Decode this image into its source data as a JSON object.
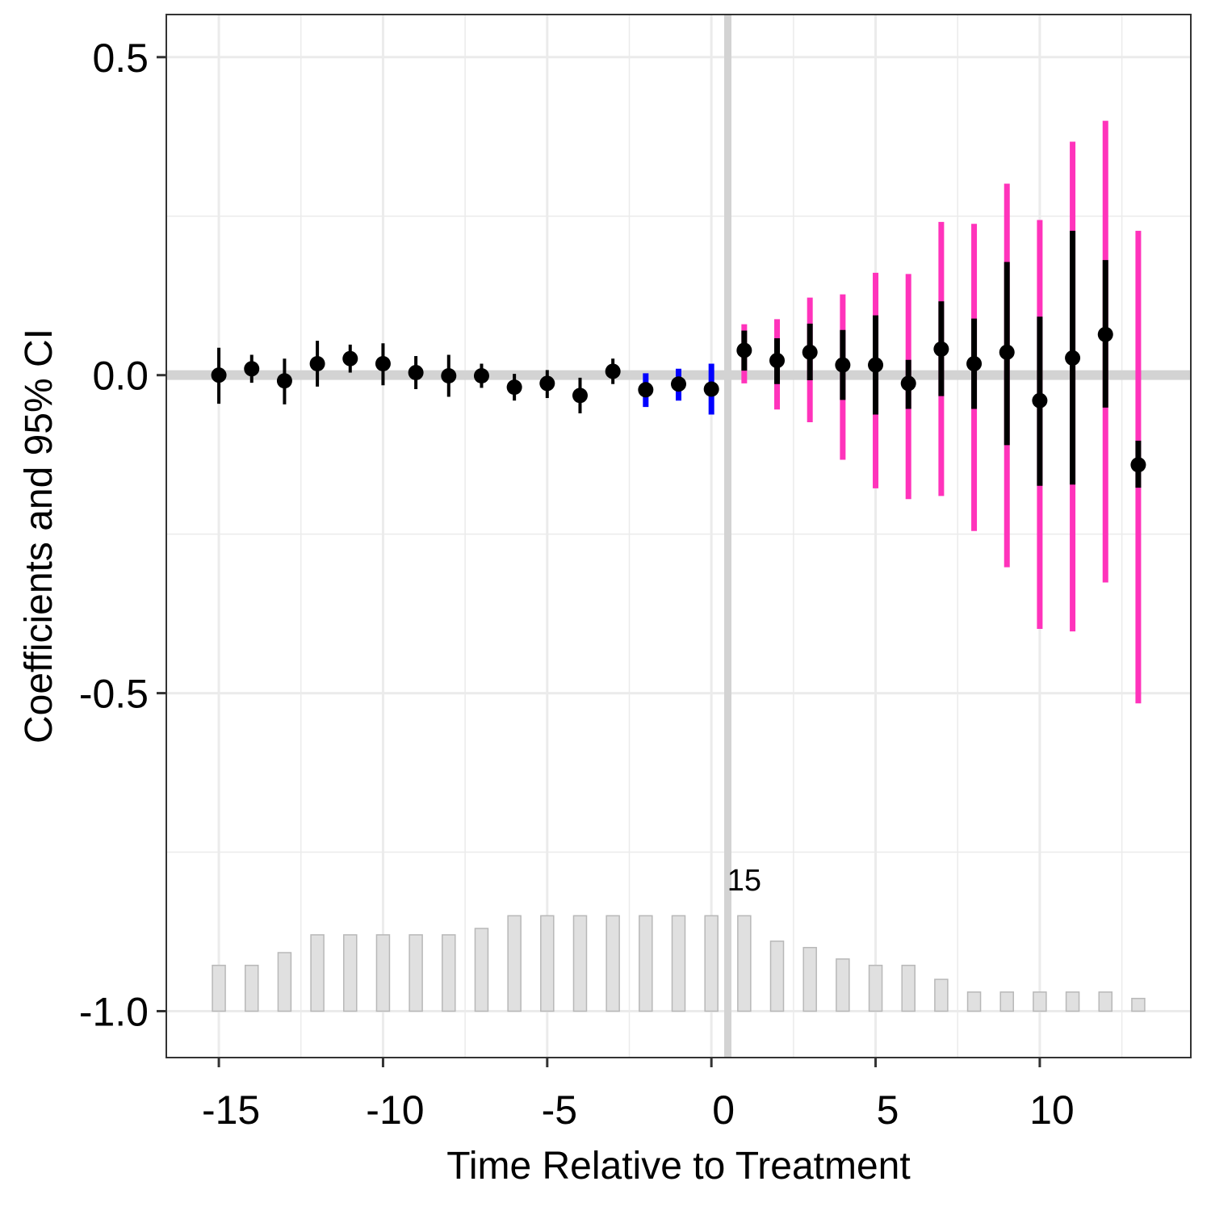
{
  "chart_data": {
    "type": "scatter",
    "title": "",
    "xlabel": "Time Relative to Treatment",
    "ylabel": "Coefficients and 95% CI",
    "xlim": [
      -16.6,
      14.6
    ],
    "ylim": [
      -1.073,
      0.567
    ],
    "x_ticks": [
      -15,
      -10,
      -5,
      0,
      5,
      10
    ],
    "x_tick_labels": [
      "-15",
      "-10",
      "-5",
      "0",
      "5",
      "10"
    ],
    "y_ticks": [
      0.5,
      0.0,
      -0.5,
      -1.0
    ],
    "y_tick_labels": [
      "0.5",
      "0.0",
      "-0.5",
      "-1.0"
    ],
    "grid": true,
    "reference_lines": {
      "y": 0.0,
      "x": 0.5
    },
    "colors": {
      "point": "#000000",
      "ci_pre": "#000000",
      "ci_placebo": "#0000ff",
      "ci_post_outer": "#ff33bb",
      "ci_post_inner": "#000000",
      "reference_line": "#d3d3d3",
      "count_bar_fill": "#e0e0e0",
      "count_bar_stroke": "#b8b8b8",
      "grid": "#ebebeb",
      "panel_border": "#333333"
    },
    "points": [
      {
        "x": -15,
        "y": 0.0,
        "ci": [
          -0.045,
          0.043
        ],
        "group": "pre"
      },
      {
        "x": -14,
        "y": 0.01,
        "ci": [
          -0.012,
          0.032
        ],
        "group": "pre"
      },
      {
        "x": -13,
        "y": -0.009,
        "ci": [
          -0.046,
          0.026
        ],
        "group": "pre"
      },
      {
        "x": -12,
        "y": 0.018,
        "ci": [
          -0.018,
          0.054
        ],
        "group": "pre"
      },
      {
        "x": -11,
        "y": 0.026,
        "ci": [
          0.004,
          0.048
        ],
        "group": "pre"
      },
      {
        "x": -10,
        "y": 0.018,
        "ci": [
          -0.016,
          0.05
        ],
        "group": "pre"
      },
      {
        "x": -9,
        "y": 0.004,
        "ci": [
          -0.022,
          0.03
        ],
        "group": "pre"
      },
      {
        "x": -8,
        "y": -0.001,
        "ci": [
          -0.034,
          0.032
        ],
        "group": "pre"
      },
      {
        "x": -7,
        "y": -0.001,
        "ci": [
          -0.02,
          0.018
        ],
        "group": "pre"
      },
      {
        "x": -6,
        "y": -0.019,
        "ci": [
          -0.04,
          0.002
        ],
        "group": "pre"
      },
      {
        "x": -5,
        "y": -0.013,
        "ci": [
          -0.036,
          0.008
        ],
        "group": "pre"
      },
      {
        "x": -4,
        "y": -0.032,
        "ci": [
          -0.06,
          -0.004
        ],
        "group": "pre"
      },
      {
        "x": -3,
        "y": 0.006,
        "ci": [
          -0.014,
          0.026
        ],
        "group": "pre"
      },
      {
        "x": -2,
        "y": -0.023,
        "ci": [
          -0.05,
          0.003
        ],
        "group": "placebo"
      },
      {
        "x": -1,
        "y": -0.014,
        "ci": [
          -0.04,
          0.01
        ],
        "group": "placebo"
      },
      {
        "x": 0,
        "y": -0.022,
        "ci": [
          -0.062,
          0.018
        ],
        "group": "placebo"
      },
      {
        "x": 1,
        "y": 0.039,
        "ci": [
          0.007,
          0.07
        ],
        "ci_outer": [
          -0.013,
          0.08
        ],
        "group": "post"
      },
      {
        "x": 2,
        "y": 0.023,
        "ci": [
          -0.014,
          0.058
        ],
        "ci_outer": [
          -0.054,
          0.088
        ],
        "group": "post"
      },
      {
        "x": 3,
        "y": 0.036,
        "ci": [
          -0.008,
          0.081
        ],
        "ci_outer": [
          -0.074,
          0.122
        ],
        "group": "post"
      },
      {
        "x": 4,
        "y": 0.016,
        "ci": [
          -0.039,
          0.071
        ],
        "ci_outer": [
          -0.133,
          0.127
        ],
        "group": "post"
      },
      {
        "x": 5,
        "y": 0.016,
        "ci": [
          -0.062,
          0.094
        ],
        "ci_outer": [
          -0.178,
          0.161
        ],
        "group": "post"
      },
      {
        "x": 6,
        "y": -0.013,
        "ci": [
          -0.053,
          0.024
        ],
        "ci_outer": [
          -0.195,
          0.159
        ],
        "group": "post"
      },
      {
        "x": 7,
        "y": 0.041,
        "ci": [
          -0.033,
          0.116
        ],
        "ci_outer": [
          -0.19,
          0.241
        ],
        "group": "post"
      },
      {
        "x": 8,
        "y": 0.018,
        "ci": [
          -0.053,
          0.089
        ],
        "ci_outer": [
          -0.245,
          0.238
        ],
        "group": "post"
      },
      {
        "x": 9,
        "y": 0.036,
        "ci": [
          -0.11,
          0.178
        ],
        "ci_outer": [
          -0.302,
          0.301
        ],
        "group": "post"
      },
      {
        "x": 10,
        "y": -0.04,
        "ci": [
          -0.174,
          0.092
        ],
        "ci_outer": [
          -0.399,
          0.244
        ],
        "group": "post"
      },
      {
        "x": 11,
        "y": 0.027,
        "ci": [
          -0.172,
          0.227
        ],
        "ci_outer": [
          -0.403,
          0.367
        ],
        "group": "post"
      },
      {
        "x": 12,
        "y": 0.064,
        "ci": [
          -0.051,
          0.181
        ],
        "ci_outer": [
          -0.326,
          0.4
        ],
        "group": "post"
      },
      {
        "x": 13,
        "y": -0.141,
        "ci": [
          -0.177,
          -0.103
        ],
        "ci_outer": [
          -0.516,
          0.227
        ],
        "group": "post"
      }
    ],
    "count_bars": {
      "base_y": -1.0,
      "top_values": [
        -0.928,
        -0.928,
        -0.908,
        -0.88,
        -0.88,
        -0.88,
        -0.88,
        -0.88,
        -0.87,
        -0.85,
        -0.85,
        -0.85,
        -0.85,
        -0.85,
        -0.85,
        -0.85,
        -0.85,
        -0.89,
        -0.9,
        -0.918,
        -0.928,
        -0.928,
        -0.95,
        -0.97,
        -0.97,
        -0.97,
        -0.97,
        -0.97,
        -0.98
      ],
      "annotation": {
        "text": "15",
        "x": 1,
        "y": -0.81
      }
    }
  }
}
